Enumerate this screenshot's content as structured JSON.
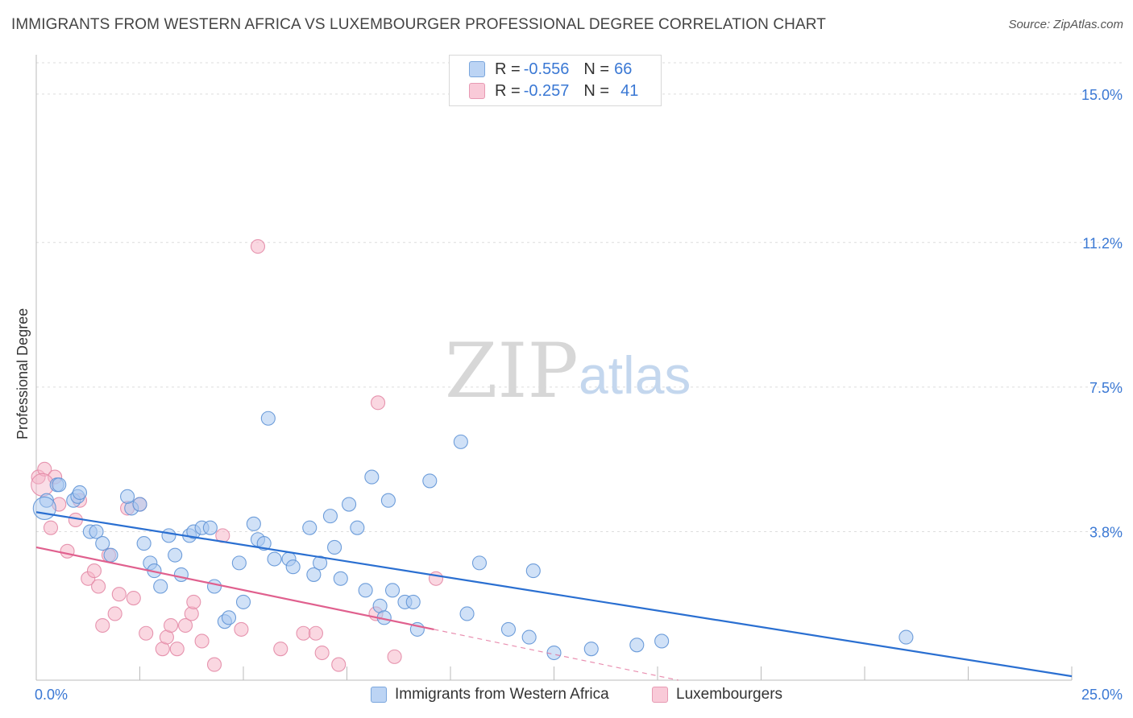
{
  "title": "IMMIGRANTS FROM WESTERN AFRICA VS LUXEMBOURGER PROFESSIONAL DEGREE CORRELATION CHART",
  "source": "Source: ZipAtlas.com",
  "watermark": {
    "zip": "ZIP",
    "atlas": "atlas"
  },
  "legend_top": [
    {
      "r_label": "R = ",
      "r_value": "-0.556",
      "n_label": "N = ",
      "n_value": "66"
    },
    {
      "r_label": "R = ",
      "r_value": "-0.257",
      "n_label": "N = ",
      "n_value": "41"
    }
  ],
  "colors": {
    "blue_fill": "#a9c8f0",
    "blue_stroke": "#5f93d6",
    "blue_line": "#2a6fd1",
    "pink_fill": "#f5b6c9",
    "pink_stroke": "#e38aa6",
    "pink_line": "#e0608e",
    "tick_label": "#3a78d4",
    "grid": "#dddddd"
  },
  "chart_data": {
    "type": "scatter",
    "title": "IMMIGRANTS FROM WESTERN AFRICA VS LUXEMBOURGER PROFESSIONAL DEGREE CORRELATION CHART",
    "xlabel": "",
    "ylabel": "Professional Degree",
    "xlim": [
      0,
      25
    ],
    "ylim": [
      0,
      15.8
    ],
    "x_tick_labels": [
      "0.0%",
      "25.0%"
    ],
    "y_ticks": [
      3.8,
      7.5,
      11.2,
      15.0
    ],
    "y_tick_labels": [
      "3.8%",
      "7.5%",
      "11.2%",
      "15.0%"
    ],
    "grid": true,
    "legend_placement": "bottom",
    "series": [
      {
        "name": "Immigrants from Western Africa",
        "r": -0.556,
        "n": 66,
        "trend": {
          "x": [
            0,
            25
          ],
          "y": [
            4.3,
            0.1
          ]
        },
        "points": [
          [
            0.25,
            4.6
          ],
          [
            0.5,
            5.0
          ],
          [
            0.55,
            5.0
          ],
          [
            0.9,
            4.6
          ],
          [
            1.0,
            4.7
          ],
          [
            1.05,
            4.8
          ],
          [
            1.3,
            3.8
          ],
          [
            1.45,
            3.8
          ],
          [
            1.6,
            3.5
          ],
          [
            1.8,
            3.2
          ],
          [
            2.3,
            4.4
          ],
          [
            2.2,
            4.7
          ],
          [
            2.5,
            4.5
          ],
          [
            2.6,
            3.5
          ],
          [
            2.75,
            3.0
          ],
          [
            2.85,
            2.8
          ],
          [
            3.0,
            2.4
          ],
          [
            3.2,
            3.7
          ],
          [
            3.35,
            3.2
          ],
          [
            3.5,
            2.7
          ],
          [
            3.7,
            3.7
          ],
          [
            3.8,
            3.8
          ],
          [
            4.0,
            3.9
          ],
          [
            4.2,
            3.9
          ],
          [
            4.3,
            2.4
          ],
          [
            4.55,
            1.5
          ],
          [
            4.65,
            1.6
          ],
          [
            4.9,
            3.0
          ],
          [
            5.0,
            2.0
          ],
          [
            5.25,
            4.0
          ],
          [
            5.35,
            3.6
          ],
          [
            5.5,
            3.5
          ],
          [
            5.75,
            3.1
          ],
          [
            5.6,
            6.7
          ],
          [
            6.1,
            3.1
          ],
          [
            6.2,
            2.9
          ],
          [
            6.6,
            3.9
          ],
          [
            6.7,
            2.7
          ],
          [
            6.85,
            3.0
          ],
          [
            7.1,
            4.2
          ],
          [
            7.2,
            3.4
          ],
          [
            7.35,
            2.6
          ],
          [
            7.55,
            4.5
          ],
          [
            7.75,
            3.9
          ],
          [
            7.95,
            2.3
          ],
          [
            8.1,
            5.2
          ],
          [
            8.3,
            1.9
          ],
          [
            8.4,
            1.6
          ],
          [
            8.5,
            4.6
          ],
          [
            8.6,
            2.3
          ],
          [
            8.9,
            2.0
          ],
          [
            9.1,
            2.0
          ],
          [
            9.2,
            1.3
          ],
          [
            9.5,
            5.1
          ],
          [
            10.25,
            6.1
          ],
          [
            10.4,
            1.7
          ],
          [
            10.7,
            3.0
          ],
          [
            11.4,
            1.3
          ],
          [
            11.9,
            1.1
          ],
          [
            12.0,
            2.8
          ],
          [
            12.5,
            0.7
          ],
          [
            13.4,
            0.8
          ],
          [
            14.5,
            0.9
          ],
          [
            15.1,
            1.0
          ],
          [
            21.0,
            1.1
          ],
          [
            0.2,
            4.4
          ]
        ]
      },
      {
        "name": "Luxembourgers",
        "r": -0.257,
        "n": 41,
        "trend": {
          "x": [
            0,
            9.6
          ],
          "y": [
            3.4,
            1.3
          ]
        },
        "trend_dashed": {
          "x": [
            9.6,
            15.5
          ],
          "y": [
            1.3,
            0.0
          ]
        },
        "points": [
          [
            0.05,
            5.2
          ],
          [
            0.2,
            5.4
          ],
          [
            0.35,
            3.9
          ],
          [
            0.45,
            5.2
          ],
          [
            0.55,
            4.5
          ],
          [
            0.75,
            3.3
          ],
          [
            0.95,
            4.1
          ],
          [
            1.05,
            4.6
          ],
          [
            1.25,
            2.6
          ],
          [
            1.4,
            2.8
          ],
          [
            1.5,
            2.4
          ],
          [
            1.6,
            1.4
          ],
          [
            1.75,
            3.2
          ],
          [
            1.9,
            1.7
          ],
          [
            2.0,
            2.2
          ],
          [
            2.2,
            4.4
          ],
          [
            2.35,
            2.1
          ],
          [
            2.5,
            4.5
          ],
          [
            2.65,
            1.2
          ],
          [
            3.05,
            0.8
          ],
          [
            3.15,
            1.1
          ],
          [
            3.25,
            1.4
          ],
          [
            3.4,
            0.8
          ],
          [
            3.6,
            1.4
          ],
          [
            3.75,
            1.7
          ],
          [
            3.8,
            2.0
          ],
          [
            4.0,
            1.0
          ],
          [
            4.3,
            0.4
          ],
          [
            4.5,
            3.7
          ],
          [
            4.95,
            1.3
          ],
          [
            5.35,
            11.1
          ],
          [
            5.9,
            0.8
          ],
          [
            6.45,
            1.2
          ],
          [
            6.75,
            1.2
          ],
          [
            6.9,
            0.7
          ],
          [
            7.3,
            0.4
          ],
          [
            8.25,
            7.1
          ],
          [
            8.2,
            1.7
          ],
          [
            8.65,
            0.6
          ],
          [
            9.65,
            2.6
          ],
          [
            0.15,
            5.0
          ]
        ]
      }
    ]
  },
  "legend_bottom": [
    {
      "label": "Immigrants from Western Africa"
    },
    {
      "label": "Luxembourgers"
    }
  ]
}
